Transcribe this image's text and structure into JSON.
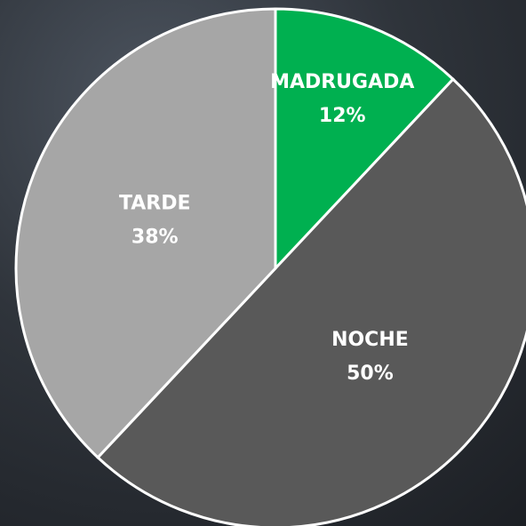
{
  "chart_data": {
    "type": "pie",
    "categories": [
      "MADRUGADA",
      "NOCHE",
      "TARDE"
    ],
    "values": [
      12,
      50,
      38
    ],
    "value_labels": [
      "12%",
      "50%",
      "38%"
    ],
    "colors": [
      "#00b050",
      "#595959",
      "#a6a6a6"
    ]
  }
}
